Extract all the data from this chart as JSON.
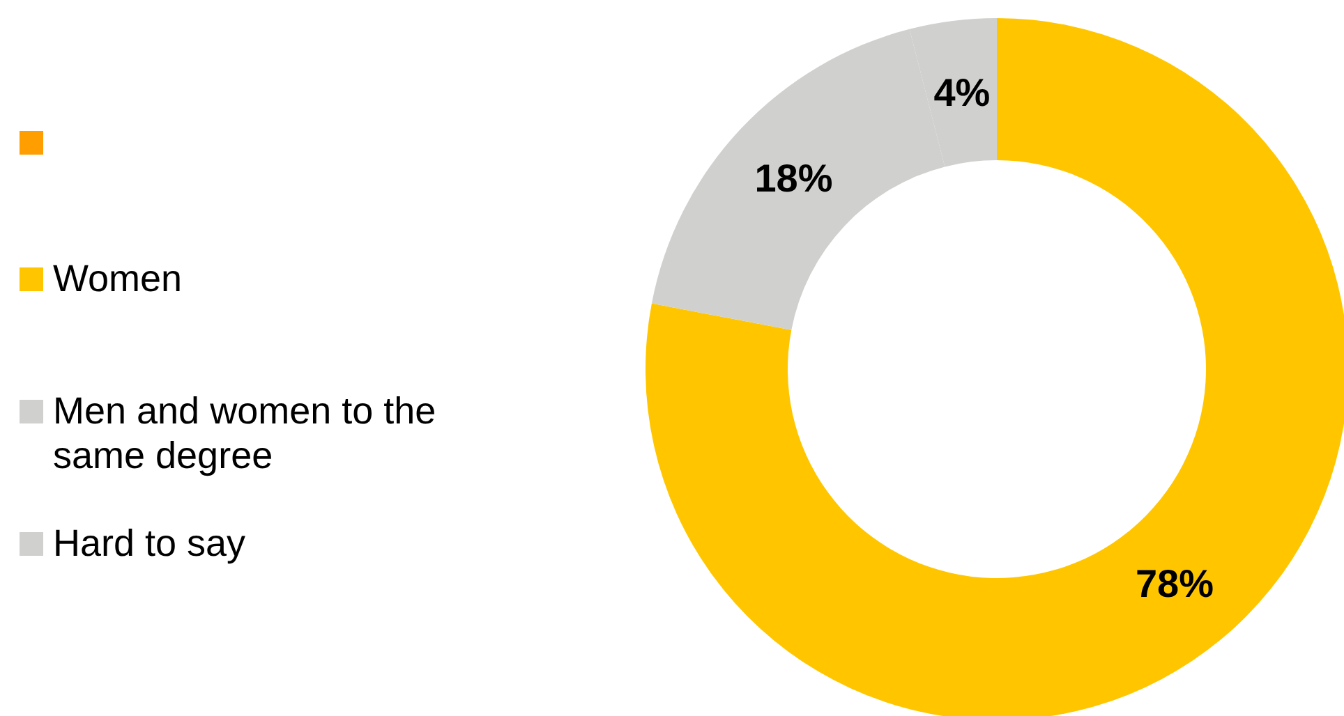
{
  "chart_data": {
    "type": "donut",
    "categories": [
      null,
      "Women",
      "Men and women to the same degree",
      "Hard to say"
    ],
    "values": [
      0,
      78,
      18,
      4
    ],
    "colors": [
      "#ff9e00",
      "#ffc600",
      "#d0d0ce",
      "#d0d0ce"
    ],
    "value_labels": [
      null,
      "78%",
      "18%",
      "4%"
    ],
    "legend": "left"
  }
}
